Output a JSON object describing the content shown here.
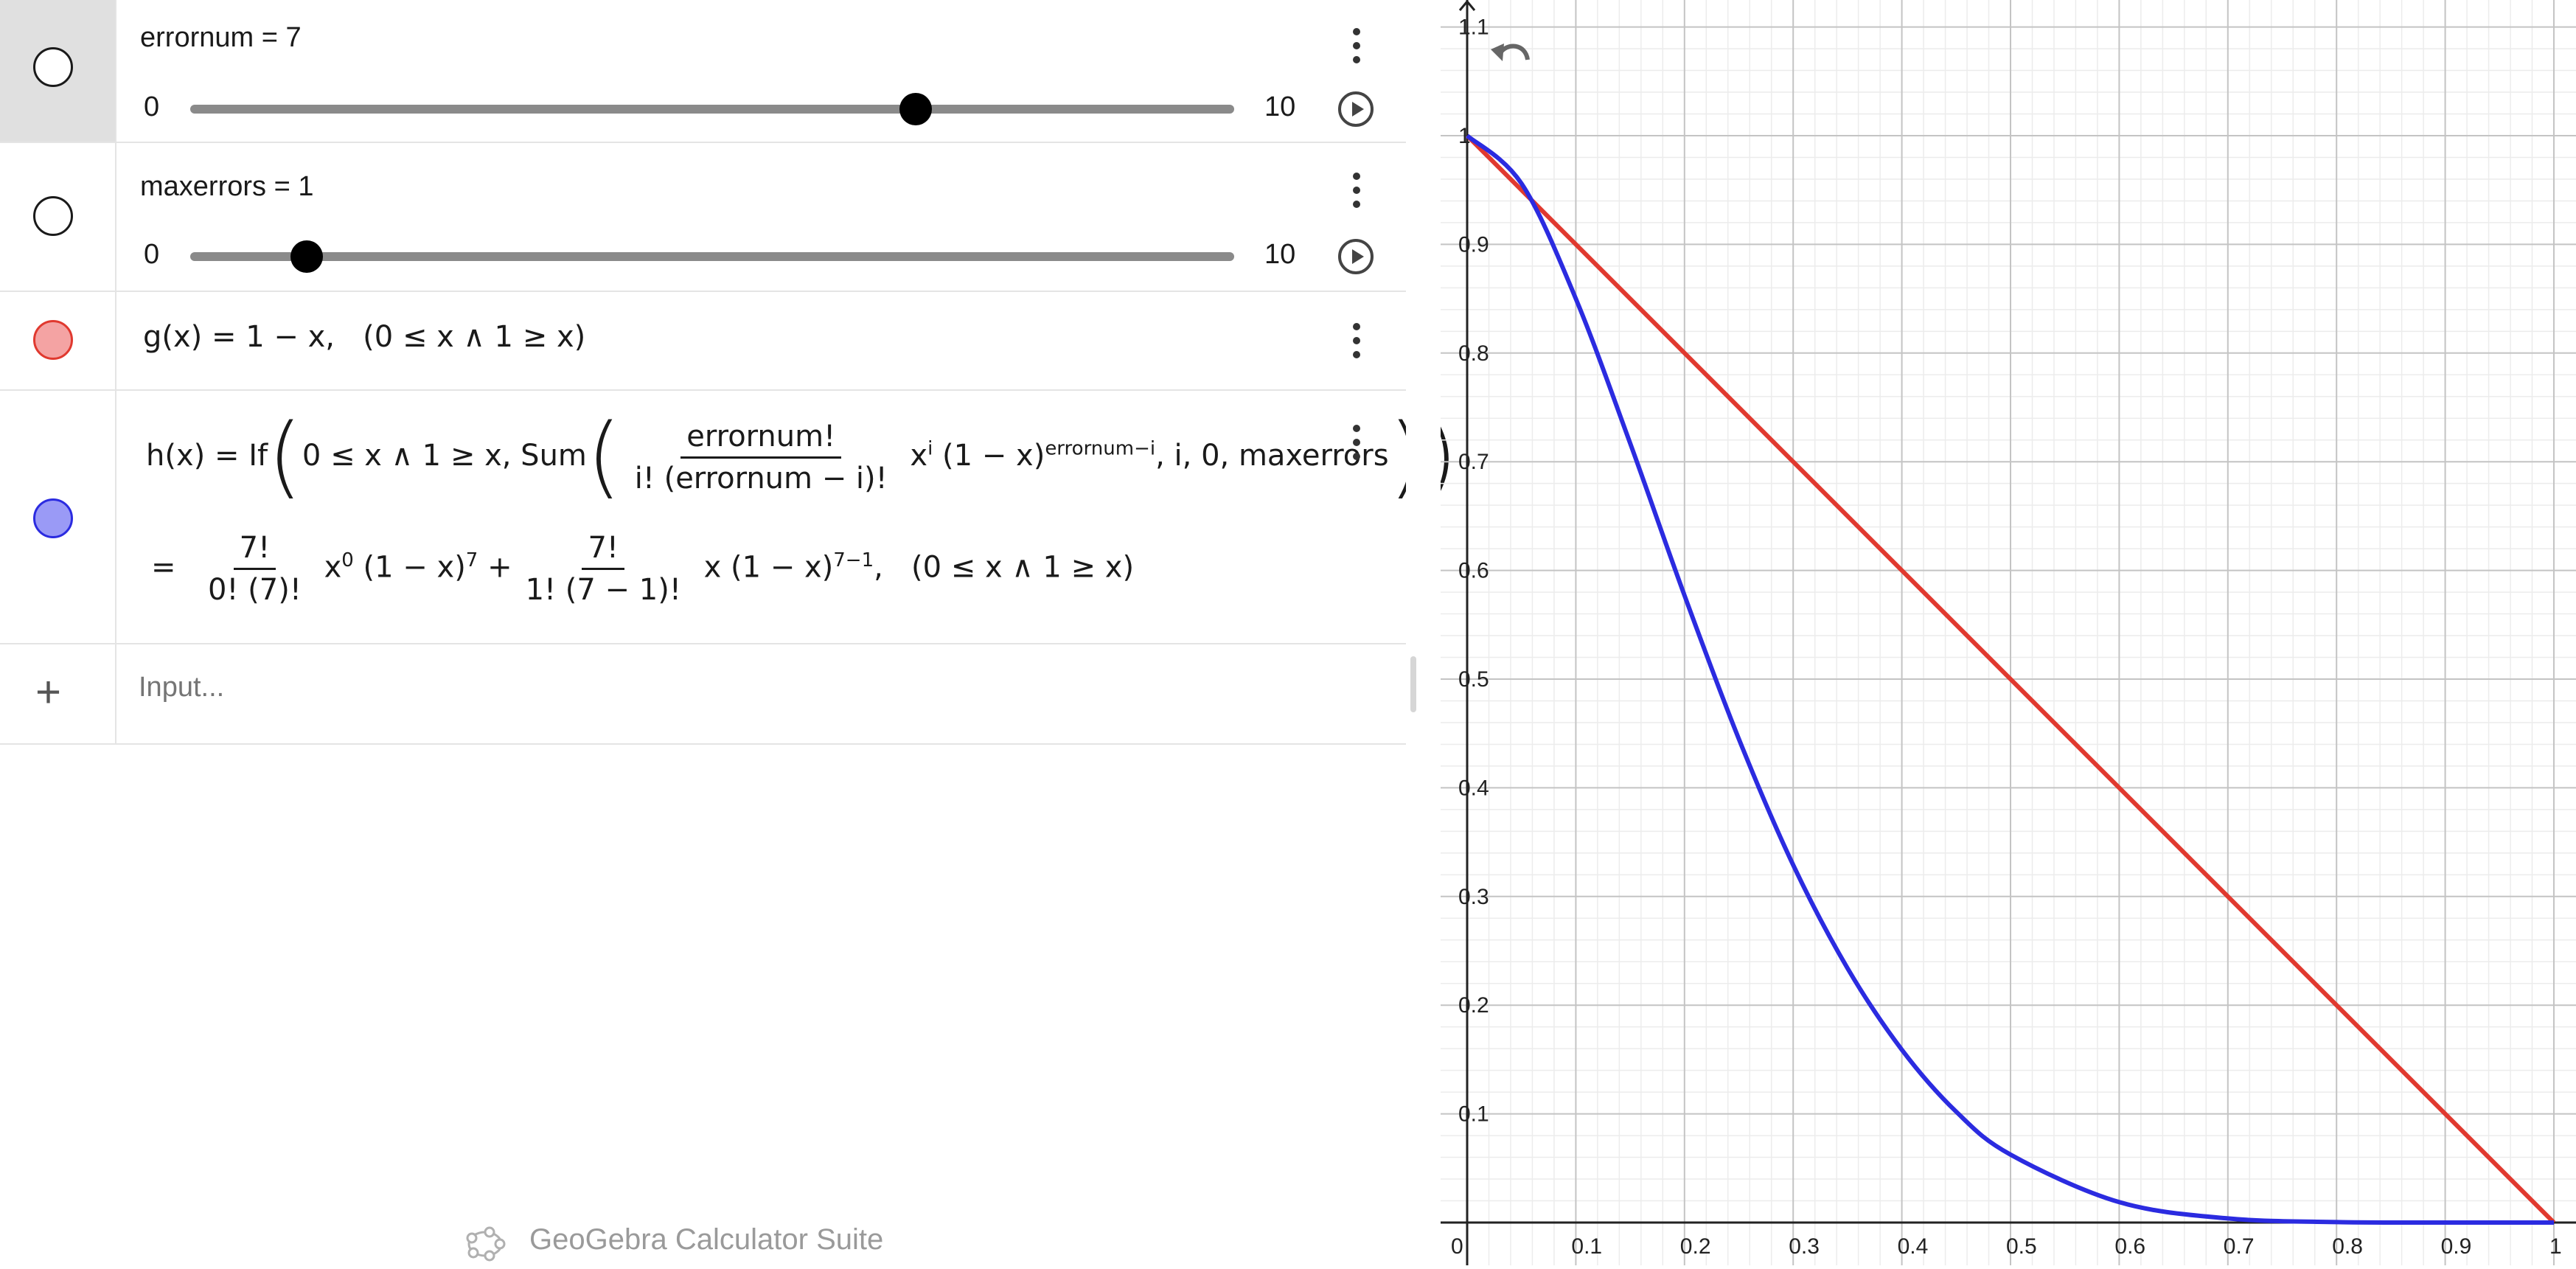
{
  "algebra": {
    "errornum": {
      "name": "errornum",
      "value": "7",
      "equals": "=",
      "min": "0",
      "max": "10",
      "fraction": 0.7
    },
    "maxerrors": {
      "name": "maxerrors",
      "value": "1",
      "equals": "=",
      "min": "0",
      "max": "10",
      "fraction": 0.1
    },
    "g": {
      "color": "#f4a3a3",
      "lhs": "g(x)",
      "eq": "=",
      "expr": "1 − x,",
      "domain": "(0 ≤ x ∧ 1 ≥ x)"
    },
    "h": {
      "color": "#9a9af6",
      "lhs": "h(x)",
      "eq": "=",
      "if": "If",
      "cond": "0 ≤ x ∧ 1 ≥ x, Sum",
      "frac_num": "errornum!",
      "frac_den": "i! (errornum − i)!",
      "x": "x",
      "x_exp": "i",
      "base": "(1 − x)",
      "base_exp": "errornum−i",
      "tail": ", i, 0, maxerrors",
      "eq2": "=",
      "t1_num": "7!",
      "t1_den": "0! (7)!",
      "t1_x": "x",
      "t1_x_exp": "0",
      "t1_base": "(1 − x)",
      "t1_base_exp": "7",
      "plus": "+",
      "t2_num": "7!",
      "t2_den": "1! (7 − 1)!",
      "t2_x": "x (1 − x)",
      "t2_exp": "7−1",
      "t2_comma": ",",
      "domain": "(0 ≤ x ∧ 1 ≥ x)"
    },
    "input_placeholder": "Input...",
    "add_icon": "+"
  },
  "footer": "GeoGebra Calculator Suite",
  "icons": {
    "undo": "undo-icon",
    "menu": "more-vert-icon",
    "play": "play-icon",
    "logo": "geogebra-logo-icon",
    "add": "plus-icon"
  },
  "chart_data": {
    "type": "line",
    "xlim": [
      0,
      1
    ],
    "ylim": [
      0,
      1.1
    ],
    "x_ticks": [
      "0",
      "0.1",
      "0.2",
      "0.3",
      "0.4",
      "0.5",
      "0.6",
      "0.7",
      "0.8",
      "0.9",
      "1"
    ],
    "y_ticks": [
      "0.1",
      "0.2",
      "0.3",
      "0.4",
      "0.5",
      "0.6",
      "0.7",
      "0.8",
      "0.9",
      "1",
      "1.1"
    ],
    "grid": true,
    "series": [
      {
        "color": "#e0392f",
        "type": "g",
        "x": [
          0,
          1
        ],
        "y": [
          1,
          0
        ]
      },
      {
        "color": "#2b2be0",
        "type": "h",
        "x": [
          0,
          0.05,
          0.1,
          0.15,
          0.2,
          0.25,
          0.3,
          0.35,
          0.4,
          0.45,
          0.5,
          0.6,
          0.7,
          0.8,
          0.9,
          1
        ],
        "y": [
          1,
          0.956,
          0.85,
          0.717,
          0.577,
          0.445,
          0.329,
          0.234,
          0.159,
          0.102,
          0.0625,
          0.0188,
          0.0038,
          0.0004,
          0.0,
          0.0
        ]
      }
    ]
  }
}
